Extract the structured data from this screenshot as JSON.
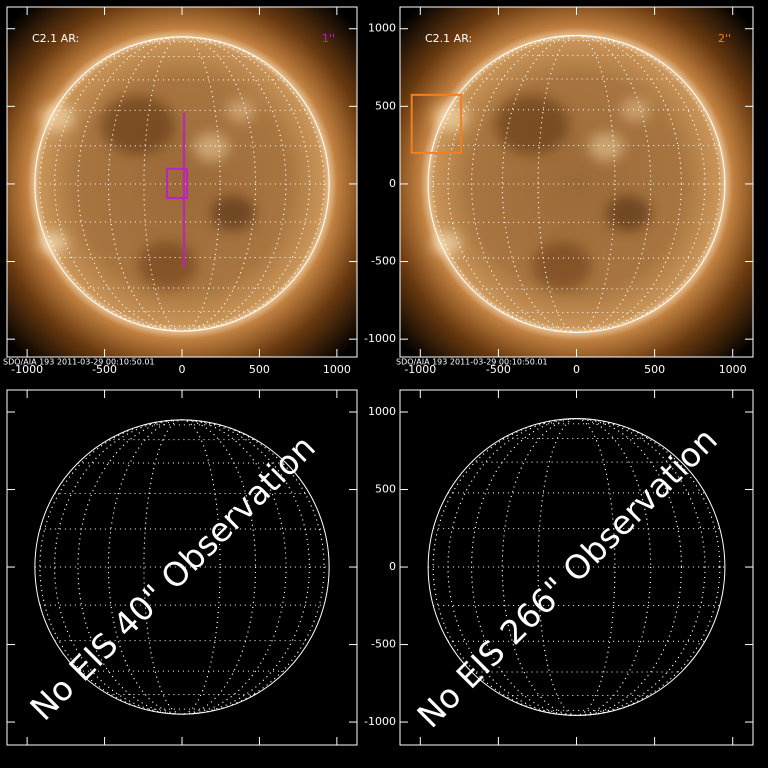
{
  "panels": [
    {
      "label": "C2.1 AR:",
      "tag": "1''",
      "tag_color": "#c020c0",
      "footer": "SDO/AIA 193  2011-03-29 00:10:50.01",
      "xlim": [
        -1130,
        1130
      ],
      "ylim": [
        -1115,
        1140
      ],
      "xticks": [
        -1000,
        -500,
        0,
        500,
        1000
      ],
      "yticks": [
        -1000,
        -500,
        0,
        500,
        1000
      ],
      "disk_radius": 950,
      "box": {
        "x": [
          -97,
          32
        ],
        "y": [
          -90,
          97
        ],
        "color": "#c020c0"
      },
      "slit": {
        "x": 13,
        "y": [
          -542,
          458
        ],
        "color": "#c020c0"
      }
    },
    {
      "label": "C2.1 AR:",
      "tag": "2''",
      "tag_color": "#f08020",
      "footer": "SDO/AIA 193  2011-03-29 00:10:50.01",
      "xlim": [
        -1130,
        1130
      ],
      "ylim": [
        -1115,
        1140
      ],
      "xticks": [
        -1000,
        -500,
        0,
        500,
        1000
      ],
      "yticks": [
        -1000,
        -500,
        0,
        500,
        1000
      ],
      "disk_radius": 950,
      "box": {
        "x": [
          -1055,
          -739
        ],
        "y": [
          200,
          574
        ],
        "color": "#f08020"
      }
    },
    {
      "message": "No EIS 40\" Observation",
      "xlim": [
        -1130,
        1130
      ],
      "ylim": [
        -1148,
        1142
      ],
      "xticks": [
        -1000,
        -500,
        0,
        500,
        1000
      ],
      "yticks": [
        -1000,
        -500,
        0,
        500,
        1000
      ],
      "disk_radius": 950
    },
    {
      "message": "No EIS 266\" Observation",
      "xlim": [
        -1130,
        1130
      ],
      "ylim": [
        -1148,
        1142
      ],
      "xticks": [
        -1000,
        -500,
        0,
        500,
        1000
      ],
      "yticks": [
        -1000,
        -500,
        0,
        500,
        1000
      ],
      "disk_radius": 950
    }
  ]
}
